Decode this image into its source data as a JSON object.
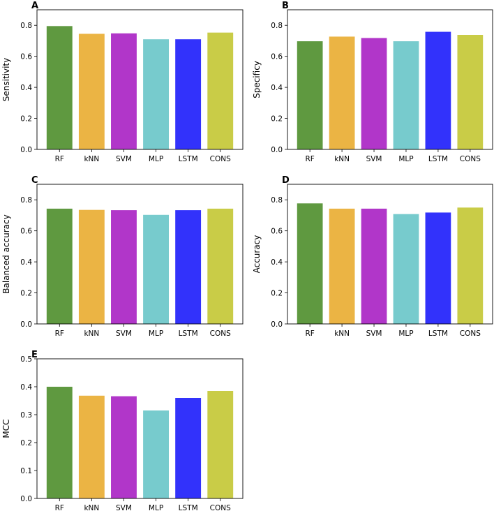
{
  "colors": {
    "RF": "#5f9940",
    "kNN": "#ebb444",
    "SVM": "#b136c9",
    "MLP": "#77cbcd",
    "LSTM": "#3232fb",
    "CONS": "#c9cc47"
  },
  "chart_data": [
    {
      "panel": "A",
      "type": "bar",
      "ylabel": "Sensitivity",
      "categories": [
        "RF",
        "kNN",
        "SVM",
        "MLP",
        "LSTM",
        "CONS"
      ],
      "values": [
        0.795,
        0.745,
        0.748,
        0.71,
        0.71,
        0.753
      ],
      "ylim": [
        0,
        0.9
      ],
      "yticks": [
        "0.0",
        "0.2",
        "0.4",
        "0.6",
        "0.8"
      ],
      "ytick_values": [
        0,
        0.2,
        0.4,
        0.6,
        0.8
      ]
    },
    {
      "panel": "B",
      "type": "bar",
      "ylabel": "Specificy",
      "categories": [
        "RF",
        "kNN",
        "SVM",
        "MLP",
        "LSTM",
        "CONS"
      ],
      "values": [
        0.697,
        0.727,
        0.718,
        0.697,
        0.758,
        0.738
      ],
      "ylim": [
        0,
        0.9
      ],
      "yticks": [
        "0.0",
        "0.2",
        "0.4",
        "0.6",
        "0.8"
      ],
      "ytick_values": [
        0,
        0.2,
        0.4,
        0.6,
        0.8
      ]
    },
    {
      "panel": "C",
      "type": "bar",
      "ylabel": "Balanced accuracy",
      "categories": [
        "RF",
        "kNN",
        "SVM",
        "MLP",
        "LSTM",
        "CONS"
      ],
      "values": [
        0.743,
        0.735,
        0.733,
        0.703,
        0.733,
        0.743
      ],
      "ylim": [
        0,
        0.9
      ],
      "yticks": [
        "0.0",
        "0.2",
        "0.4",
        "0.6",
        "0.8"
      ],
      "ytick_values": [
        0,
        0.2,
        0.4,
        0.6,
        0.8
      ]
    },
    {
      "panel": "D",
      "type": "bar",
      "ylabel": "Accuracy",
      "categories": [
        "RF",
        "kNN",
        "SVM",
        "MLP",
        "LSTM",
        "CONS"
      ],
      "values": [
        0.777,
        0.743,
        0.743,
        0.708,
        0.718,
        0.75
      ],
      "ylim": [
        0,
        0.9
      ],
      "yticks": [
        "0.0",
        "0.2",
        "0.4",
        "0.6",
        "0.8"
      ],
      "ytick_values": [
        0,
        0.2,
        0.4,
        0.6,
        0.8
      ]
    },
    {
      "panel": "E",
      "type": "bar",
      "ylabel": "MCC",
      "categories": [
        "RF",
        "kNN",
        "SVM",
        "MLP",
        "LSTM",
        "CONS"
      ],
      "values": [
        0.4,
        0.368,
        0.366,
        0.315,
        0.36,
        0.385
      ],
      "ylim": [
        0,
        0.5
      ],
      "yticks": [
        "0.0",
        "0.1",
        "0.2",
        "0.3",
        "0.4",
        "0.5"
      ],
      "ytick_values": [
        0,
        0.1,
        0.2,
        0.3,
        0.4,
        0.5
      ]
    }
  ]
}
